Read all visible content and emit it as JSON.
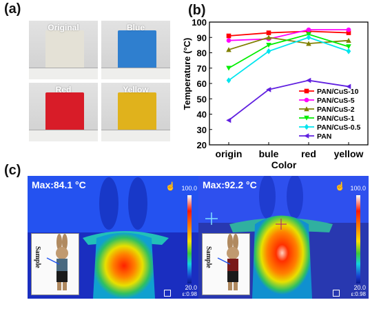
{
  "panels": {
    "a_label": "(a)",
    "b_label": "(b)",
    "c_label": "(c)"
  },
  "photos": [
    {
      "caption": "Original",
      "fabric_color": "#e4e1d6"
    },
    {
      "caption": "Blue",
      "fabric_color": "#2f7fcf"
    },
    {
      "caption": "Red",
      "fabric_color": "#d81c28"
    },
    {
      "caption": "Yellow",
      "fabric_color": "#e0b21c"
    }
  ],
  "chart_data": {
    "type": "line",
    "xlabel": "Color",
    "ylabel": "Temperature (°C)",
    "categories": [
      "origin",
      "bule",
      "red",
      "yellow"
    ],
    "ylim": [
      20,
      100
    ],
    "yticks": [
      20,
      30,
      40,
      50,
      60,
      70,
      80,
      90,
      100
    ],
    "legend_position": "center-right",
    "series": [
      {
        "name": "PAN/CuS-10",
        "color": "#ff0000",
        "marker": "square",
        "values": [
          91,
          93,
          94,
          93
        ]
      },
      {
        "name": "PAN/CuS-5",
        "color": "#ff00ff",
        "marker": "circle",
        "values": [
          88,
          89,
          95,
          95
        ]
      },
      {
        "name": "PAN/CuS-2",
        "color": "#808000",
        "marker": "triangle",
        "values": [
          82,
          90,
          86,
          88
        ]
      },
      {
        "name": "PAN/CuS-1",
        "color": "#00ee00",
        "marker": "triangle-down",
        "values": [
          70,
          85,
          92,
          84
        ]
      },
      {
        "name": "PAN/CuS-0.5",
        "color": "#00e5ee",
        "marker": "diamond",
        "values": [
          62,
          81,
          90,
          81
        ]
      },
      {
        "name": "PAN",
        "color": "#6020e0",
        "marker": "triangle-left",
        "values": [
          36,
          56,
          62,
          58
        ]
      }
    ]
  },
  "thermal": [
    {
      "max_label": "Max:84.1 °C",
      "scale_max": "100.0",
      "scale_min": "20.0",
      "emissivity": "ε:0.98",
      "inset_label": "Sample"
    },
    {
      "max_label": "Max:92.2 °C",
      "scale_max": "100.0",
      "scale_min": "20.0",
      "emissivity": "ε:0.98",
      "inset_label": "Sample"
    }
  ]
}
